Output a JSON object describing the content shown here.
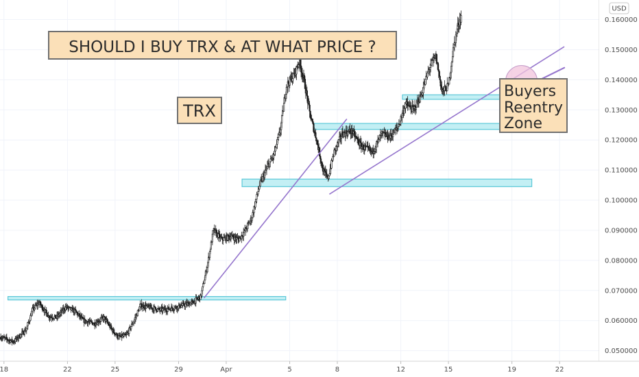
{
  "chart_data": {
    "type": "candlestick",
    "currency": "USD",
    "y_ticks": [
      "0.160000",
      "0.150000",
      "0.140000",
      "0.130000",
      "0.120000",
      "0.110000",
      "0.100000",
      "0.090000",
      "0.080000",
      "0.070000",
      "0.060000",
      "0.050000"
    ],
    "ylim": [
      0.0465,
      0.1665
    ],
    "x_ticks": [
      {
        "label": "18",
        "day": 18
      },
      {
        "label": "22",
        "day": 22
      },
      {
        "label": "25",
        "day": 25
      },
      {
        "label": "29",
        "day": 29
      },
      {
        "label": "Apr",
        "day": 32
      },
      {
        "label": "5",
        "day": 36
      },
      {
        "label": "8",
        "day": 39
      },
      {
        "label": "12",
        "day": 43
      },
      {
        "label": "15",
        "day": 46
      },
      {
        "label": "19",
        "day": 50
      },
      {
        "label": "22",
        "day": 53
      }
    ],
    "xlim": [
      17.75,
      55.5
    ],
    "price_anchors": [
      [
        17.8,
        0.0545
      ],
      [
        18.6,
        0.053
      ],
      [
        19.4,
        0.057
      ],
      [
        19.8,
        0.0635
      ],
      [
        20.2,
        0.066
      ],
      [
        20.8,
        0.0615
      ],
      [
        21.3,
        0.061
      ],
      [
        21.9,
        0.0645
      ],
      [
        22.5,
        0.063
      ],
      [
        23.0,
        0.06
      ],
      [
        23.7,
        0.059
      ],
      [
        24.3,
        0.061
      ],
      [
        24.8,
        0.057
      ],
      [
        25.2,
        0.0545
      ],
      [
        25.7,
        0.055
      ],
      [
        26.2,
        0.06
      ],
      [
        26.6,
        0.065
      ],
      [
        27.1,
        0.0645
      ],
      [
        27.8,
        0.0635
      ],
      [
        28.5,
        0.064
      ],
      [
        29.2,
        0.065
      ],
      [
        29.9,
        0.066
      ],
      [
        30.4,
        0.068
      ],
      [
        30.8,
        0.078
      ],
      [
        31.2,
        0.09
      ],
      [
        31.7,
        0.087
      ],
      [
        32.3,
        0.088
      ],
      [
        32.8,
        0.087
      ],
      [
        33.2,
        0.09
      ],
      [
        33.6,
        0.094
      ],
      [
        34.1,
        0.105
      ],
      [
        34.6,
        0.111
      ],
      [
        35.0,
        0.115
      ],
      [
        35.4,
        0.123
      ],
      [
        35.8,
        0.138
      ],
      [
        36.3,
        0.142
      ],
      [
        36.6,
        0.146
      ],
      [
        36.9,
        0.14
      ],
      [
        37.3,
        0.128
      ],
      [
        37.7,
        0.12
      ],
      [
        38.1,
        0.11
      ],
      [
        38.4,
        0.107
      ],
      [
        38.8,
        0.116
      ],
      [
        39.3,
        0.122
      ],
      [
        39.9,
        0.123
      ],
      [
        40.5,
        0.118
      ],
      [
        41.2,
        0.116
      ],
      [
        41.8,
        0.122
      ],
      [
        42.3,
        0.121
      ],
      [
        42.8,
        0.124
      ],
      [
        43.3,
        0.132
      ],
      [
        43.8,
        0.13
      ],
      [
        44.3,
        0.135
      ],
      [
        44.8,
        0.144
      ],
      [
        45.2,
        0.148
      ],
      [
        45.6,
        0.136
      ],
      [
        46.0,
        0.138
      ],
      [
        46.3,
        0.15
      ],
      [
        46.6,
        0.158
      ],
      [
        46.8,
        0.161
      ]
    ],
    "zones": [
      {
        "y0": 0.067,
        "y1": 0.068,
        "x0": 18.25,
        "x1": 35.75
      },
      {
        "y0": 0.1045,
        "y1": 0.107,
        "x0": 33.0,
        "x1": 51.25
      },
      {
        "y0": 0.1235,
        "y1": 0.1255,
        "x0": 37.5,
        "x1": 51.5
      },
      {
        "y0": 0.1335,
        "y1": 0.135,
        "x0": 43.1,
        "x1": 53.0
      }
    ],
    "trendlines": [
      {
        "from": [
          30.6,
          0.0675
        ],
        "to": [
          39.6,
          0.127
        ]
      },
      {
        "from": [
          38.5,
          0.102
        ],
        "to": [
          53.3,
          0.151
        ]
      }
    ],
    "circle": {
      "day": 50.6,
      "price": 0.1395
    },
    "arrow": {
      "from": [
        53.3,
        0.144
      ],
      "to": [
        50.8,
        0.1375
      ]
    },
    "colors": {
      "up": "#26a69a",
      "down": "#ef5350",
      "candle": "#1a1a1a",
      "zone_fill": "#b8ecf2",
      "zone_stroke": "#5cc8d8",
      "trend": "#9575cd",
      "circle_fill": "#f1c4dc",
      "circle_stroke": "#c9a2cc",
      "note_fill": "#fbe0b8",
      "note_stroke": "#6f6f6f",
      "grid": "#f0f3fa"
    }
  },
  "annotations": {
    "headline": "SHOULD I BUY TRX & AT WHAT PRICE ?",
    "ticker": "TRX",
    "zone_note": [
      "Buyers",
      "Reentry",
      "Zone"
    ]
  }
}
